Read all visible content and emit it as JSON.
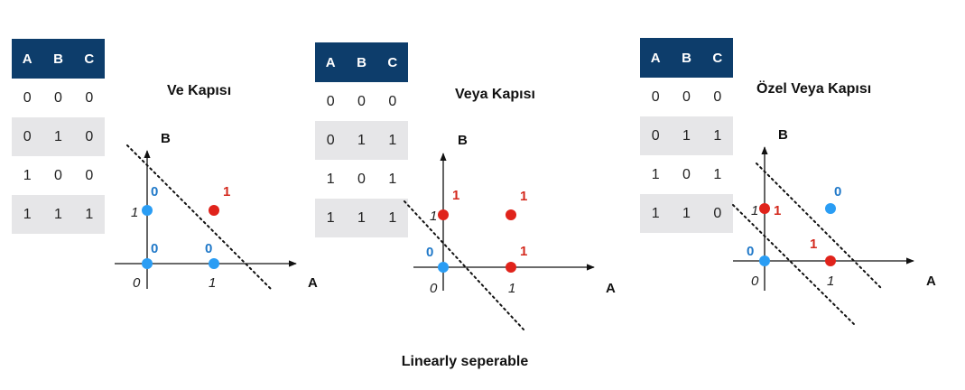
{
  "and_gate": {
    "title": "Ve Kapısı",
    "table": {
      "headers": [
        "A",
        "B",
        "C"
      ],
      "rows": [
        [
          "0",
          "0",
          "0"
        ],
        [
          "0",
          "1",
          "0"
        ],
        [
          "1",
          "0",
          "0"
        ],
        [
          "1",
          "1",
          "1"
        ]
      ]
    },
    "plot": {
      "axis_x_label": "A",
      "axis_y_label": "B",
      "tick_x_0": "0",
      "tick_x_1": "1",
      "tick_y_1": "1",
      "points": [
        {
          "a": 0,
          "b": 0,
          "output": "0"
        },
        {
          "a": 0,
          "b": 1,
          "output": "0"
        },
        {
          "a": 1,
          "b": 0,
          "output": "0"
        },
        {
          "a": 1,
          "b": 1,
          "output": "1"
        }
      ]
    }
  },
  "or_gate": {
    "title": "Veya Kapısı",
    "table": {
      "headers": [
        "A",
        "B",
        "C"
      ],
      "rows": [
        [
          "0",
          "0",
          "0"
        ],
        [
          "0",
          "1",
          "1"
        ],
        [
          "1",
          "0",
          "1"
        ],
        [
          "1",
          "1",
          "1"
        ]
      ]
    },
    "plot": {
      "axis_x_label": "A",
      "axis_y_label": "B",
      "tick_x_0": "0",
      "tick_x_1": "1",
      "tick_y_1": "1",
      "points": [
        {
          "a": 0,
          "b": 0,
          "output": "0"
        },
        {
          "a": 0,
          "b": 1,
          "output": "1"
        },
        {
          "a": 1,
          "b": 0,
          "output": "1"
        },
        {
          "a": 1,
          "b": 1,
          "output": "1"
        }
      ]
    }
  },
  "xor_gate": {
    "title": "Özel Veya Kapısı",
    "table": {
      "headers": [
        "A",
        "B",
        "C"
      ],
      "rows": [
        [
          "0",
          "0",
          "0"
        ],
        [
          "0",
          "1",
          "1"
        ],
        [
          "1",
          "0",
          "1"
        ],
        [
          "1",
          "1",
          "0"
        ]
      ]
    },
    "plot": {
      "axis_x_label": "A",
      "axis_y_label": "B",
      "tick_x_0": "0",
      "tick_x_1": "1",
      "tick_y_1": "1",
      "points": [
        {
          "a": 0,
          "b": 0,
          "output": "0"
        },
        {
          "a": 0,
          "b": 1,
          "output": "1"
        },
        {
          "a": 1,
          "b": 0,
          "output": "1"
        },
        {
          "a": 1,
          "b": 1,
          "output": "0"
        }
      ]
    }
  },
  "caption": "Linearly seperable",
  "colors": {
    "header_bg": "#0d3d6b",
    "row_shade": "#e6e6e8",
    "point_zero": "#2a9df4",
    "point_one": "#e0231b",
    "label_zero": "#1f78c8",
    "label_one": "#d42a1e"
  }
}
